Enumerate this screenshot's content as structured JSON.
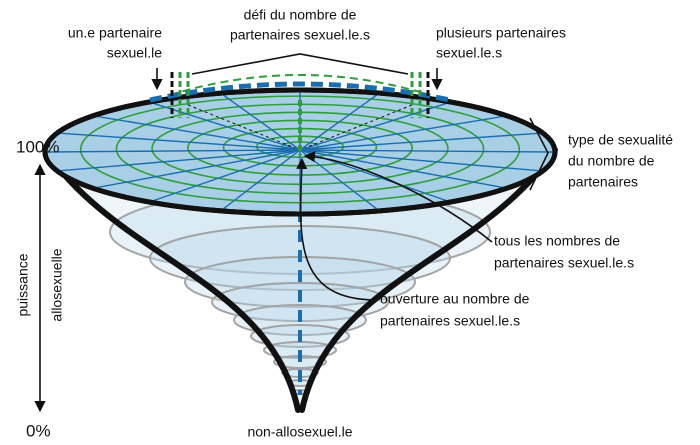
{
  "labels": {
    "one_partner": [
      "un.e partenaire",
      "sexuel.le"
    ],
    "challenge": [
      "défi du nombre de",
      "partenaires sexuel.le.s"
    ],
    "several_partners": [
      "plusieurs partenaires",
      "sexuel.le.s"
    ],
    "top_percent": "100%",
    "bottom_percent": "0%",
    "axis": [
      "puissance",
      "allosexuelle"
    ],
    "type": [
      "type de sexualité",
      "du nombre de",
      "partenaires"
    ],
    "all_numbers": [
      "tous les nombres de",
      "partenaires sexuel.le.s"
    ],
    "openness": [
      "ouverture au nombre de",
      "partenaires sexuel.le.s"
    ],
    "bottom": "non-allosexuel.le"
  }
}
